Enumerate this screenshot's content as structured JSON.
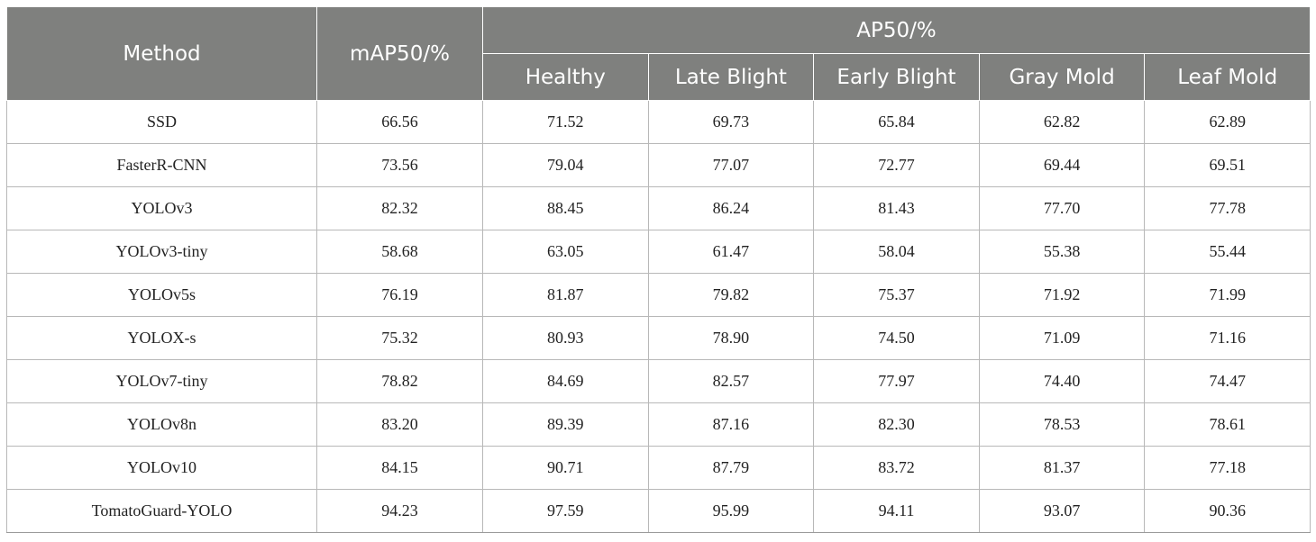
{
  "table": {
    "headers": {
      "method": "Method",
      "map50": "mAP50/%",
      "ap50_group": "AP50/%",
      "classes": [
        "Healthy",
        "Late Blight",
        "Early Blight",
        "Gray Mold",
        "Leaf Mold"
      ]
    },
    "rows": [
      {
        "method": "SSD",
        "map50": "66.56",
        "ap": [
          "71.52",
          "69.73",
          "65.84",
          "62.82",
          "62.89"
        ]
      },
      {
        "method": "FasterR-CNN",
        "map50": "73.56",
        "ap": [
          "79.04",
          "77.07",
          "72.77",
          "69.44",
          "69.51"
        ]
      },
      {
        "method": "YOLOv3",
        "map50": "82.32",
        "ap": [
          "88.45",
          "86.24",
          "81.43",
          "77.70",
          "77.78"
        ]
      },
      {
        "method": "YOLOv3-tiny",
        "map50": "58.68",
        "ap": [
          "63.05",
          "61.47",
          "58.04",
          "55.38",
          "55.44"
        ]
      },
      {
        "method": "YOLOv5s",
        "map50": "76.19",
        "ap": [
          "81.87",
          "79.82",
          "75.37",
          "71.92",
          "71.99"
        ]
      },
      {
        "method": "YOLOX-s",
        "map50": "75.32",
        "ap": [
          "80.93",
          "78.90",
          "74.50",
          "71.09",
          "71.16"
        ]
      },
      {
        "method": "YOLOv7-tiny",
        "map50": "78.82",
        "ap": [
          "84.69",
          "82.57",
          "77.97",
          "74.40",
          "74.47"
        ]
      },
      {
        "method": "YOLOv8n",
        "map50": "83.20",
        "ap": [
          "89.39",
          "87.16",
          "82.30",
          "78.53",
          "78.61"
        ]
      },
      {
        "method": "YOLOv10",
        "map50": "84.15",
        "ap": [
          "90.71",
          "87.79",
          "83.72",
          "81.37",
          "77.18"
        ]
      },
      {
        "method": "TomatoGuard-YOLO",
        "map50": "94.23",
        "ap": [
          "97.59",
          "95.99",
          "94.11",
          "93.07",
          "90.36"
        ]
      }
    ]
  },
  "colors": {
    "header_bg": "#7f807e",
    "header_text": "#ffffff",
    "border": "#b8b8b8"
  }
}
